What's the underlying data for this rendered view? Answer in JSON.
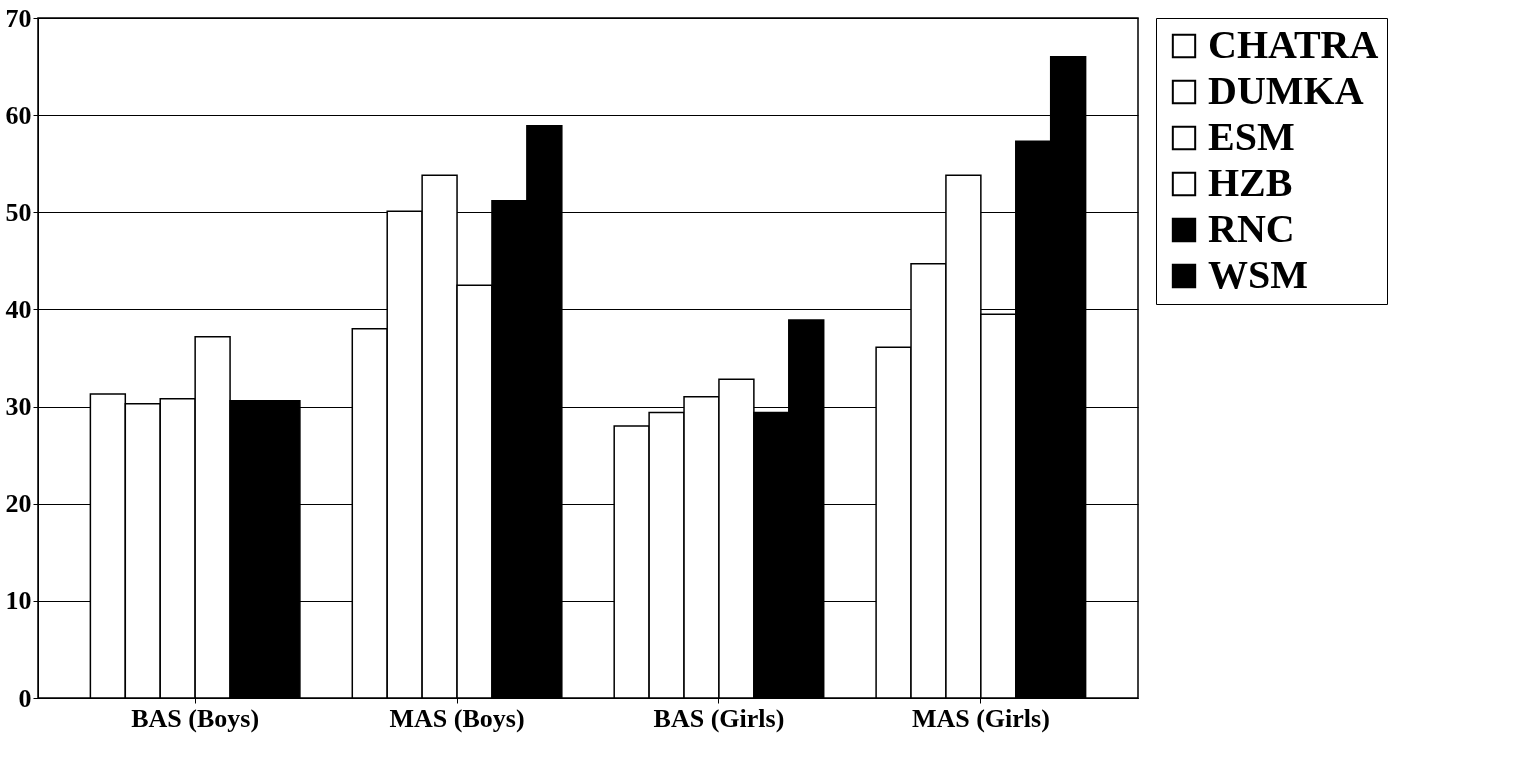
{
  "chart_data": {
    "type": "bar",
    "categories": [
      "BAS (Boys)",
      "MAS (Boys)",
      "BAS (Girls)",
      "MAS (Girls)"
    ],
    "series": [
      {
        "name": "CHATRA",
        "color": "#ffffff",
        "values": [
          31.3,
          38.0,
          28.0,
          36.1
        ]
      },
      {
        "name": "DUMKA",
        "color": "#ffffff",
        "values": [
          30.3,
          50.1,
          29.4,
          44.7
        ]
      },
      {
        "name": "ESM",
        "color": "#ffffff",
        "values": [
          30.8,
          53.8,
          31.0,
          53.8
        ]
      },
      {
        "name": "HZB",
        "color": "#ffffff",
        "values": [
          37.2,
          42.5,
          32.8,
          39.5
        ]
      },
      {
        "name": "RNC",
        "color": "#000000",
        "values": [
          30.6,
          51.2,
          29.4,
          57.3
        ]
      },
      {
        "name": "WSM",
        "color": "#000000",
        "values": [
          30.6,
          58.9,
          38.9,
          66.0
        ]
      }
    ],
    "ylim": [
      0,
      70
    ],
    "yticks": [
      0,
      10,
      20,
      30,
      40,
      50,
      60,
      70
    ],
    "grid": "y",
    "legend": "right"
  }
}
